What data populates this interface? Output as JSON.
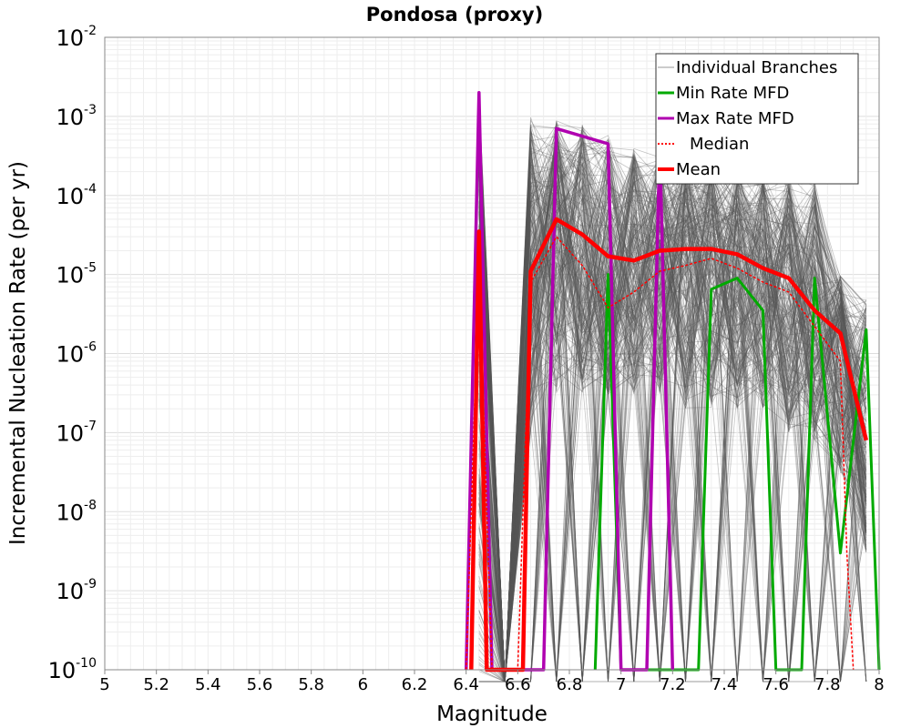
{
  "chart_data": {
    "type": "line",
    "title": "Pondosa (proxy)",
    "xlabel": "Magnitude",
    "ylabel": "Incremental Nucleation Rate (per yr)",
    "xlim": [
      5,
      8
    ],
    "ylim": [
      1e-10,
      0.01
    ],
    "yscale": "log",
    "grid": true,
    "legend_position": "top-right",
    "x_ticks": [
      "5",
      "5.2",
      "5.4",
      "5.6",
      "5.8",
      "6",
      "6.2",
      "6.4",
      "6.6",
      "6.8",
      "7",
      "7.2",
      "7.4",
      "7.6",
      "7.8",
      "8"
    ],
    "y_ticks": [
      {
        "base": "10",
        "exp": "-10",
        "value": 1e-10
      },
      {
        "base": "10",
        "exp": "-9",
        "value": 1e-09
      },
      {
        "base": "10",
        "exp": "-8",
        "value": 1e-08
      },
      {
        "base": "10",
        "exp": "-7",
        "value": 1e-07
      },
      {
        "base": "10",
        "exp": "-6",
        "value": 1e-06
      },
      {
        "base": "10",
        "exp": "-5",
        "value": 1e-05
      },
      {
        "base": "10",
        "exp": "-4",
        "value": 0.0001
      },
      {
        "base": "10",
        "exp": "-3",
        "value": 0.001
      },
      {
        "base": "10",
        "exp": "-2",
        "value": 0.01
      }
    ],
    "bins": [
      6.45,
      6.55,
      6.65,
      6.75,
      6.85,
      6.95,
      7.05,
      7.15,
      7.25,
      7.35,
      7.45,
      7.55,
      7.65,
      7.75,
      7.85,
      7.95
    ],
    "series": [
      {
        "name": "Individual Branches",
        "color": "#555555",
        "style": "thin",
        "envelope_low": [
          1e-11,
          1e-11,
          1e-07,
          3e-07,
          3e-07,
          3e-07,
          3e-07,
          3e-07,
          2e-07,
          2e-07,
          2e-07,
          2e-07,
          1e-07,
          8e-08,
          3e-08,
          3e-09
        ],
        "envelope_high": [
          0.002,
          1e-11,
          0.001,
          0.0009,
          0.0008,
          0.0006,
          0.0004,
          0.0004,
          0.00035,
          0.0003,
          0.00025,
          0.0002,
          0.0002,
          0.00015,
          1e-05,
          5e-06
        ],
        "center": [
          3e-05,
          1e-11,
          1e-05,
          4e-05,
          2e-05,
          8e-06,
          1e-05,
          1.5e-05,
          1.8e-05,
          1.8e-05,
          1.5e-05,
          1e-05,
          8e-06,
          3e-06,
          1.5e-06,
          1e-07
        ]
      },
      {
        "name": "Min Rate MFD",
        "color": "#00aa00",
        "points": [
          [
            6.9,
            1e-10
          ],
          [
            6.95,
            1e-05
          ],
          [
            7.0,
            1e-10
          ],
          [
            7.3,
            1e-10
          ],
          [
            7.35,
            6.5e-06
          ],
          [
            7.45,
            9e-06
          ],
          [
            7.55,
            3.5e-06
          ],
          [
            7.6,
            1e-10
          ],
          [
            7.7,
            1e-10
          ],
          [
            7.75,
            9e-06
          ],
          [
            7.85,
            3e-09
          ],
          [
            7.95,
            2e-06
          ],
          [
            8.0,
            1e-10
          ]
        ]
      },
      {
        "name": "Max Rate MFD",
        "color": "#b000b0",
        "points": [
          [
            6.4,
            1e-10
          ],
          [
            6.45,
            0.002
          ],
          [
            6.5,
            1e-10
          ],
          [
            6.7,
            1e-10
          ],
          [
            6.75,
            0.0007
          ],
          [
            6.95,
            0.00045
          ],
          [
            7.0,
            1e-10
          ],
          [
            7.1,
            1e-10
          ],
          [
            7.15,
            0.00045
          ],
          [
            7.2,
            1e-10
          ]
        ]
      },
      {
        "name": "Median",
        "color": "#ff0000",
        "points": [
          [
            6.4,
            1e-10
          ],
          [
            6.45,
            1.2e-05
          ],
          [
            6.5,
            1e-10
          ],
          [
            6.6,
            1e-10
          ],
          [
            6.65,
            8e-06
          ],
          [
            6.75,
            3e-05
          ],
          [
            6.85,
            1.3e-05
          ],
          [
            6.95,
            3.8e-06
          ],
          [
            7.05,
            6e-06
          ],
          [
            7.15,
            1.1e-05
          ],
          [
            7.25,
            1.3e-05
          ],
          [
            7.35,
            1.6e-05
          ],
          [
            7.45,
            1.2e-05
          ],
          [
            7.55,
            8e-06
          ],
          [
            7.65,
            6e-06
          ],
          [
            7.75,
            2.2e-06
          ],
          [
            7.85,
            8e-07
          ],
          [
            7.875,
            3e-09
          ],
          [
            7.9,
            1e-10
          ]
        ]
      },
      {
        "name": "Mean",
        "color": "#ff0000",
        "points": [
          [
            6.42,
            1e-10
          ],
          [
            6.45,
            3.5e-05
          ],
          [
            6.48,
            1e-10
          ],
          [
            6.62,
            1e-10
          ],
          [
            6.65,
            1.1e-05
          ],
          [
            6.75,
            5e-05
          ],
          [
            6.85,
            3.2e-05
          ],
          [
            6.95,
            1.7e-05
          ],
          [
            7.05,
            1.5e-05
          ],
          [
            7.15,
            2e-05
          ],
          [
            7.25,
            2.1e-05
          ],
          [
            7.35,
            2.1e-05
          ],
          [
            7.45,
            1.8e-05
          ],
          [
            7.55,
            1.2e-05
          ],
          [
            7.65,
            9e-06
          ],
          [
            7.75,
            3.5e-06
          ],
          [
            7.85,
            1.8e-06
          ],
          [
            7.95,
            8e-08
          ]
        ]
      }
    ]
  }
}
